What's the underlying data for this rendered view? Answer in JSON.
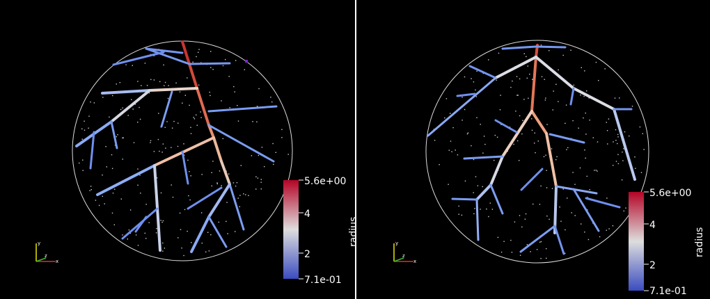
{
  "views": [
    {
      "id": "left",
      "colorbar": {
        "title": "radius",
        "max_label": "5.6e+00",
        "mid_label_high": "4",
        "mid_label_low": "2",
        "min_label": "7.1e-01"
      },
      "axes_labels": {
        "x": "x",
        "y": "y",
        "z": "z"
      }
    },
    {
      "id": "right",
      "colorbar": {
        "title": "radius",
        "max_label": "5.6e+00",
        "mid_label_high": "4",
        "mid_label_low": "2",
        "min_label": "7.1e-01"
      },
      "axes_labels": {
        "x": "x",
        "y": "y",
        "z": "z"
      }
    }
  ],
  "colors": {
    "low": "#3b4cc0",
    "mid": "#dddddd",
    "high": "#b40426",
    "background": "#000000",
    "outline": "#ffffff",
    "marker": "#8020e0"
  }
}
